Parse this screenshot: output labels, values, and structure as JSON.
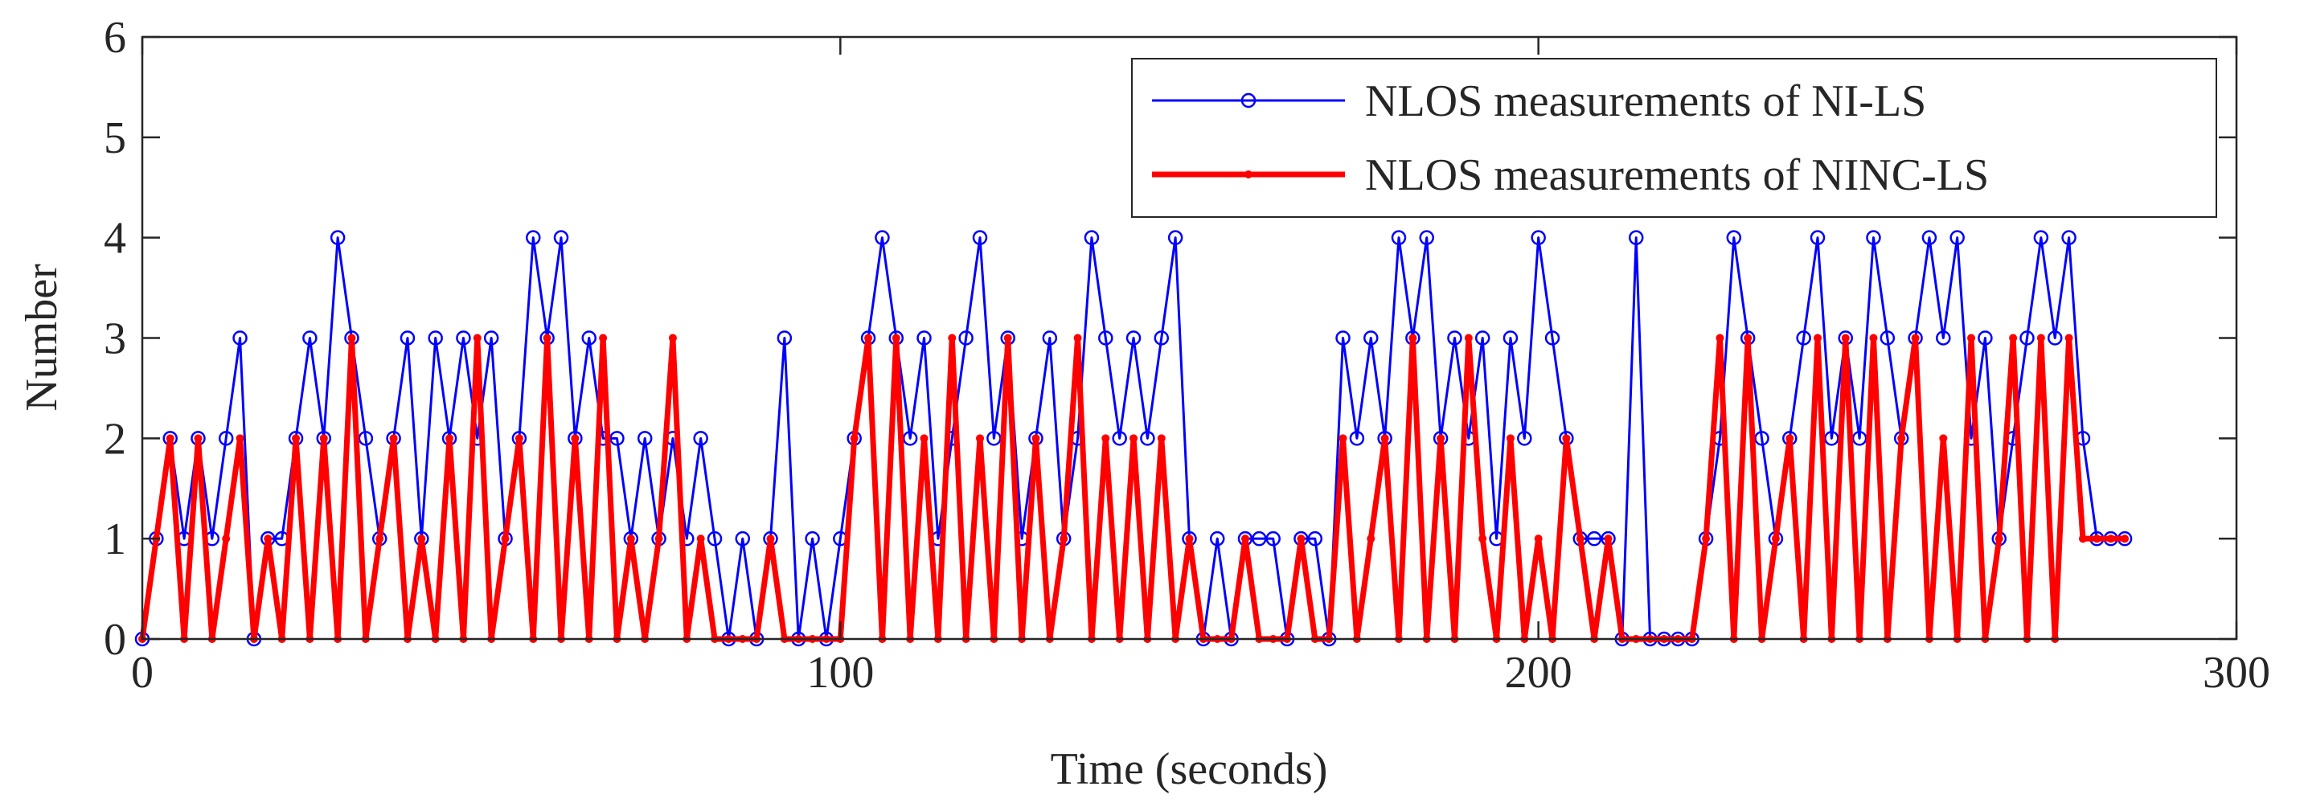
{
  "chart_data": {
    "type": "line",
    "xlabel": "Time (seconds)",
    "ylabel": "Number",
    "xlim": [
      0,
      300
    ],
    "xticks": [
      0,
      100,
      200,
      300
    ],
    "ylim": [
      0,
      6
    ],
    "yticks": [
      0,
      1,
      2,
      3,
      4,
      5,
      6
    ],
    "legend": "upper right",
    "x": [
      0,
      2,
      4,
      6,
      8,
      10,
      12,
      14,
      16,
      18,
      20,
      22,
      24,
      26,
      28,
      30,
      32,
      34,
      36,
      38,
      40,
      42,
      44,
      46,
      48,
      50,
      52,
      54,
      56,
      58,
      60,
      62,
      64,
      66,
      68,
      70,
      72,
      74,
      76,
      78,
      80,
      82,
      84,
      86,
      88,
      90,
      92,
      94,
      96,
      98,
      100,
      102,
      104,
      106,
      108,
      110,
      112,
      114,
      116,
      118,
      120,
      122,
      124,
      126,
      128,
      130,
      132,
      134,
      136,
      138,
      140,
      142,
      144,
      146,
      148,
      150,
      152,
      154,
      156,
      158,
      160,
      162,
      164,
      166,
      168,
      170,
      172,
      174,
      176,
      178,
      180,
      182,
      184,
      186,
      188,
      190,
      192,
      194,
      196,
      198,
      200,
      202,
      204,
      206,
      208,
      210,
      212,
      214,
      216,
      218,
      220,
      222,
      224,
      226,
      228,
      230,
      232,
      234,
      236,
      238,
      240,
      242,
      244,
      246,
      248,
      250,
      252,
      254,
      256,
      258,
      260,
      262,
      264,
      266,
      268,
      270,
      272,
      274,
      276,
      278,
      280,
      282,
      284
    ],
    "series": [
      {
        "name": "NLOS measurements of NI-LS",
        "color": "#0000ff",
        "values": [
          0,
          1,
          2,
          1,
          2,
          1,
          2,
          3,
          0,
          1,
          1,
          2,
          3,
          2,
          4,
          3,
          2,
          1,
          2,
          3,
          1,
          3,
          2,
          3,
          2,
          3,
          1,
          2,
          4,
          3,
          4,
          2,
          3,
          2,
          2,
          1,
          2,
          1,
          2,
          1,
          2,
          1,
          0,
          1,
          0,
          1,
          3,
          0,
          1,
          0,
          1,
          2,
          3,
          4,
          3,
          2,
          3,
          1,
          2,
          3,
          4,
          2,
          3,
          1,
          2,
          3,
          1,
          2,
          4,
          3,
          2,
          3,
          2,
          3,
          4,
          1,
          0,
          1,
          0,
          1,
          1,
          1,
          0,
          1,
          1,
          0,
          3,
          2,
          3,
          2,
          4,
          3,
          4,
          2,
          3,
          2,
          3,
          1,
          3,
          2,
          4,
          3,
          2,
          1,
          1,
          1,
          0,
          4,
          0,
          0,
          0,
          0,
          1,
          2,
          4,
          3,
          2,
          1,
          2,
          3,
          4,
          2,
          3,
          2,
          4,
          3,
          2,
          3,
          4,
          3,
          4,
          2,
          3,
          1,
          2,
          3,
          4,
          3,
          4,
          2,
          1,
          1,
          1
        ]
      },
      {
        "name": "NLOS measurements of NINC-LS",
        "color": "#ff0000",
        "values": [
          0,
          1,
          2,
          0,
          2,
          0,
          1,
          2,
          0,
          1,
          0,
          2,
          0,
          2,
          0,
          3,
          0,
          1,
          2,
          0,
          1,
          0,
          2,
          0,
          3,
          0,
          1,
          2,
          0,
          3,
          0,
          2,
          0,
          3,
          0,
          1,
          0,
          1,
          3,
          0,
          1,
          0,
          0,
          0,
          0,
          1,
          0,
          0,
          0,
          0,
          0,
          2,
          3,
          0,
          3,
          0,
          2,
          0,
          3,
          0,
          2,
          0,
          3,
          0,
          2,
          0,
          1,
          3,
          0,
          2,
          0,
          2,
          0,
          2,
          0,
          1,
          0,
          0,
          0,
          1,
          0,
          0,
          0,
          1,
          0,
          0,
          2,
          0,
          1,
          2,
          0,
          3,
          0,
          2,
          0,
          3,
          1,
          0,
          2,
          0,
          1,
          0,
          2,
          1,
          0,
          1,
          0,
          0,
          0,
          0,
          0,
          0,
          1,
          3,
          0,
          3,
          0,
          1,
          2,
          0,
          3,
          0,
          3,
          0,
          3,
          0,
          2,
          3,
          0,
          2,
          0,
          3,
          0,
          1,
          3,
          0,
          3,
          0,
          3,
          1,
          1,
          1,
          1
        ]
      }
    ]
  }
}
